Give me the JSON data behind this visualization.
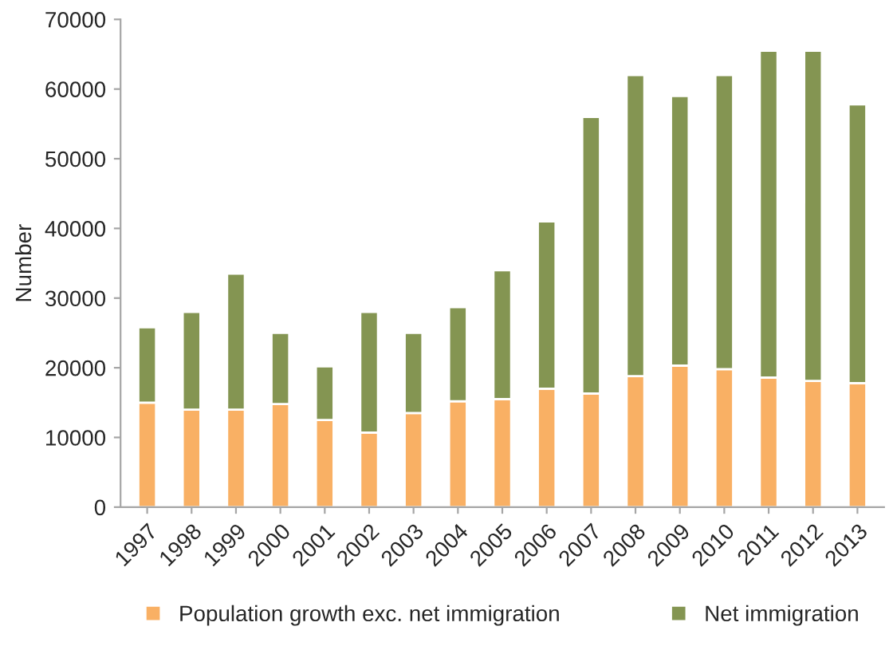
{
  "chart_data": {
    "type": "bar",
    "stacked": true,
    "ylabel": "Number",
    "categories": [
      "1997",
      "1998",
      "1999",
      "2000",
      "2001",
      "2002",
      "2003",
      "2004",
      "2005",
      "2006",
      "2007",
      "2008",
      "2009",
      "2010",
      "2011",
      "2012",
      "2013"
    ],
    "series": [
      {
        "name": "Population growth exc. net immigration",
        "color": "#f9b064",
        "values": [
          15000,
          14000,
          14000,
          14800,
          12500,
          10700,
          13500,
          15200,
          15500,
          17000,
          16300,
          18800,
          20300,
          19800,
          18600,
          18100,
          17800
        ]
      },
      {
        "name": "Net immigration",
        "color": "#849552",
        "values": [
          10800,
          14000,
          19500,
          10200,
          7700,
          17300,
          11500,
          13500,
          18500,
          24000,
          39700,
          43200,
          38700,
          42200,
          46900,
          47400,
          40000
        ]
      }
    ],
    "ylim": [
      0,
      70000
    ],
    "yticks": [
      0,
      10000,
      20000,
      30000,
      40000,
      50000,
      60000,
      70000
    ],
    "grid": false,
    "legend": "bottom"
  }
}
